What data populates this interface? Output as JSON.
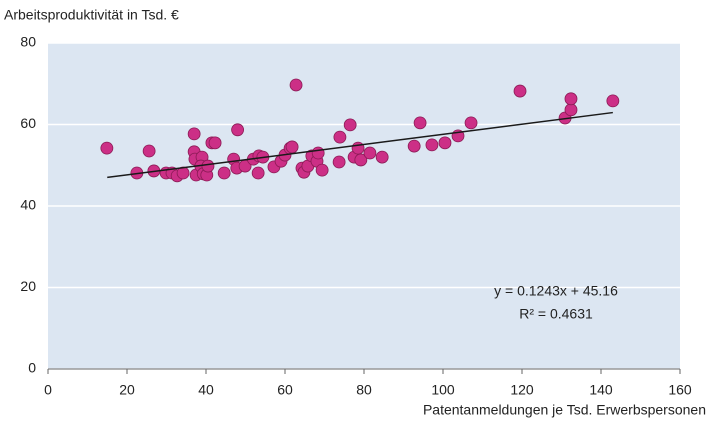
{
  "chart_data": {
    "type": "scatter",
    "y_label": "Arbeitsproduktivität in Tsd. €",
    "x_label": "Patentanmeldungen je Tsd. Erwerbspersonen",
    "xlim": [
      0,
      160
    ],
    "xticks": [
      0,
      20,
      40,
      60,
      80,
      100,
      120,
      140,
      160
    ],
    "ylim": [
      0,
      80
    ],
    "yticks": [
      0,
      20,
      40,
      60,
      80
    ],
    "grid": true,
    "series": [
      {
        "color": "#cc2f86",
        "x": [
          14.9,
          22.5,
          25.6,
          26.8,
          29.9,
          31.4,
          32.7,
          34.2,
          37,
          37,
          37.2,
          37.5,
          39,
          38.7,
          39.3,
          40.2,
          40.5,
          41.5,
          42.3,
          44.6,
          48,
          47,
          47.8,
          49.9,
          52,
          53.2,
          53.4,
          54.4,
          57.2,
          59,
          60,
          61.3,
          61.8,
          62.8,
          64.3,
          64.8,
          65.8,
          66.8,
          68.1,
          68.4,
          69.4,
          73.7,
          73.9,
          76.5,
          77.5,
          78.5,
          79.2,
          81.5,
          84.6,
          92.7,
          94.2,
          97.2,
          100.5,
          103.8,
          107.1,
          119.5,
          130.9,
          132.4,
          132.4,
          143
        ],
        "values": [
          54.2,
          48.1,
          53.5,
          48.6,
          48.1,
          48.1,
          47.4,
          48.1,
          57.7,
          53.3,
          51.5,
          47.6,
          52,
          49.8,
          47.9,
          47.6,
          49.8,
          55.5,
          55.5,
          48.1,
          58.7,
          51.5,
          49.3,
          49.8,
          51.5,
          48.1,
          52.3,
          52,
          49.6,
          51,
          52.5,
          54.2,
          54.5,
          69.7,
          49.3,
          48.3,
          49.8,
          52.3,
          51,
          53,
          48.8,
          50.8,
          56.9,
          59.9,
          52,
          54.2,
          51.3,
          53,
          52,
          54.7,
          60.4,
          55,
          55.5,
          57.2,
          60.4,
          68.2,
          61.6,
          63.6,
          66.3,
          65.8
        ]
      }
    ],
    "trendline": {
      "color": "#1a1a1a",
      "x": [
        15,
        143
      ],
      "values": [
        47.02,
        62.93
      ]
    },
    "annotations": [
      "y = 0.1243x + 45.16",
      "R² = 0.4631"
    ],
    "background": "#dce6f2"
  }
}
